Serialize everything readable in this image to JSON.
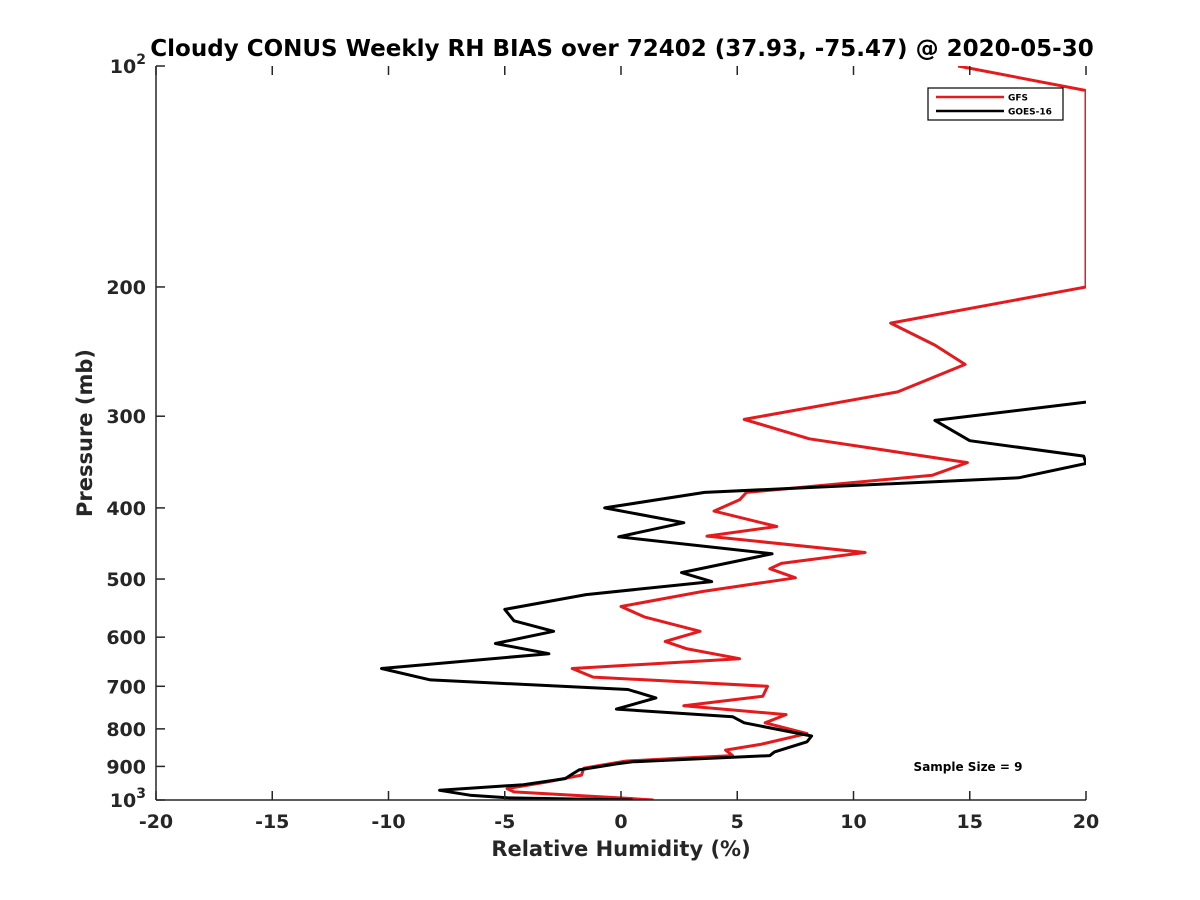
{
  "chart_data": {
    "type": "line",
    "title": "Cloudy CONUS Weekly RH BIAS over 72402 (37.93, -75.47) @ 2020-05-30",
    "xlabel": "Relative Humidity (%)",
    "ylabel": "Pressure (mb)",
    "xlim": [
      -20,
      20
    ],
    "ylim": [
      100,
      1000
    ],
    "y_scale": "log",
    "y_reversed": true,
    "grid": false,
    "legend_position": "top-right",
    "x_ticks": [
      "-20",
      "-15",
      "-10",
      "-5",
      "0",
      "5",
      "10",
      "15",
      "20"
    ],
    "y_ticks": [
      {
        "value": 100,
        "base": "10",
        "exp": "2"
      },
      {
        "value": 200,
        "label": "200"
      },
      {
        "value": 300,
        "label": "300"
      },
      {
        "value": 400,
        "label": "400"
      },
      {
        "value": 500,
        "label": "500"
      },
      {
        "value": 600,
        "label": "600"
      },
      {
        "value": 700,
        "label": "700"
      },
      {
        "value": 800,
        "label": "800"
      },
      {
        "value": 900,
        "label": "900"
      },
      {
        "value": 1000,
        "base": "10",
        "exp": "3"
      }
    ],
    "annotation": "Sample Size = 9",
    "series": [
      {
        "name": "GFS",
        "color": "#e41a1c",
        "points": [
          [
            1.4,
            1000
          ],
          [
            0.3,
            995
          ],
          [
            -4.6,
            975
          ],
          [
            -4.9,
            965
          ],
          [
            -3.2,
            945
          ],
          [
            -1.7,
            925
          ],
          [
            -1.6,
            905
          ],
          [
            0.2,
            885
          ],
          [
            2.5,
            877
          ],
          [
            4.8,
            870
          ],
          [
            4.5,
            855
          ],
          [
            6.0,
            840
          ],
          [
            8.0,
            812
          ],
          [
            6.2,
            785
          ],
          [
            7.1,
            765
          ],
          [
            2.7,
            744
          ],
          [
            6.1,
            722
          ],
          [
            6.3,
            700
          ],
          [
            -1.2,
            680
          ],
          [
            -2.1,
            662
          ],
          [
            5.1,
            642
          ],
          [
            2.8,
            622
          ],
          [
            1.9,
            608
          ],
          [
            3.4,
            589
          ],
          [
            1.0,
            563
          ],
          [
            0.0,
            545
          ],
          [
            3.5,
            520
          ],
          [
            7.5,
            498
          ],
          [
            6.4,
            484
          ],
          [
            6.9,
            476
          ],
          [
            10.5,
            460
          ],
          [
            3.7,
            437
          ],
          [
            6.7,
            424
          ],
          [
            4.0,
            404
          ],
          [
            5.1,
            390
          ],
          [
            5.4,
            381
          ],
          [
            13.4,
            361
          ],
          [
            14.9,
            347
          ],
          [
            8.1,
            322
          ],
          [
            5.3,
            303
          ],
          [
            11.9,
            278
          ],
          [
            14.8,
            255
          ],
          [
            13.5,
            240
          ],
          [
            11.6,
            224
          ],
          [
            18.9,
            203
          ],
          [
            20.0,
            200
          ],
          [
            20.0,
            108
          ],
          [
            14.5,
            100
          ]
        ]
      },
      {
        "name": "GOES-16",
        "color": "#000000",
        "points": [
          [
            0.5,
            1000
          ],
          [
            -4.9,
            993
          ],
          [
            -6.5,
            985
          ],
          [
            -7.8,
            970
          ],
          [
            -4.2,
            953
          ],
          [
            -2.4,
            935
          ],
          [
            -2.1,
            922
          ],
          [
            -1.8,
            910
          ],
          [
            -0.2,
            893
          ],
          [
            0.5,
            887
          ],
          [
            6.4,
            870
          ],
          [
            6.6,
            860
          ],
          [
            8.0,
            833
          ],
          [
            8.2,
            818
          ],
          [
            5.3,
            785
          ],
          [
            4.8,
            770
          ],
          [
            -0.2,
            752
          ],
          [
            1.5,
            726
          ],
          [
            0.3,
            707
          ],
          [
            -8.2,
            686
          ],
          [
            -10.3,
            662
          ],
          [
            -3.1,
            632
          ],
          [
            -5.4,
            612
          ],
          [
            -2.9,
            589
          ],
          [
            -4.6,
            570
          ],
          [
            -5.0,
            550
          ],
          [
            -1.5,
            525
          ],
          [
            3.9,
            504
          ],
          [
            2.6,
            490
          ],
          [
            6.5,
            462
          ],
          [
            -0.1,
            438
          ],
          [
            2.7,
            419
          ],
          [
            -0.7,
            400
          ],
          [
            3.6,
            381
          ],
          [
            17.1,
            364
          ],
          [
            20.0,
            348
          ],
          [
            19.9,
            340
          ],
          [
            15.0,
            324
          ],
          [
            13.5,
            304
          ],
          [
            20.0,
            287
          ]
        ]
      }
    ]
  }
}
